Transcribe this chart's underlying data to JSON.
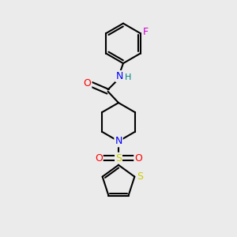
{
  "background_color": "#ebebeb",
  "bond_color": "#000000",
  "bond_width": 1.5,
  "atom_colors": {
    "C": "#000000",
    "N": "#0000ff",
    "O": "#ff0000",
    "S": "#cccc00",
    "F": "#cc00cc",
    "H": "#008080"
  },
  "font_size": 8,
  "figsize": [
    3.0,
    3.0
  ],
  "dpi": 100,
  "xlim": [
    0,
    10
  ],
  "ylim": [
    0,
    10
  ]
}
